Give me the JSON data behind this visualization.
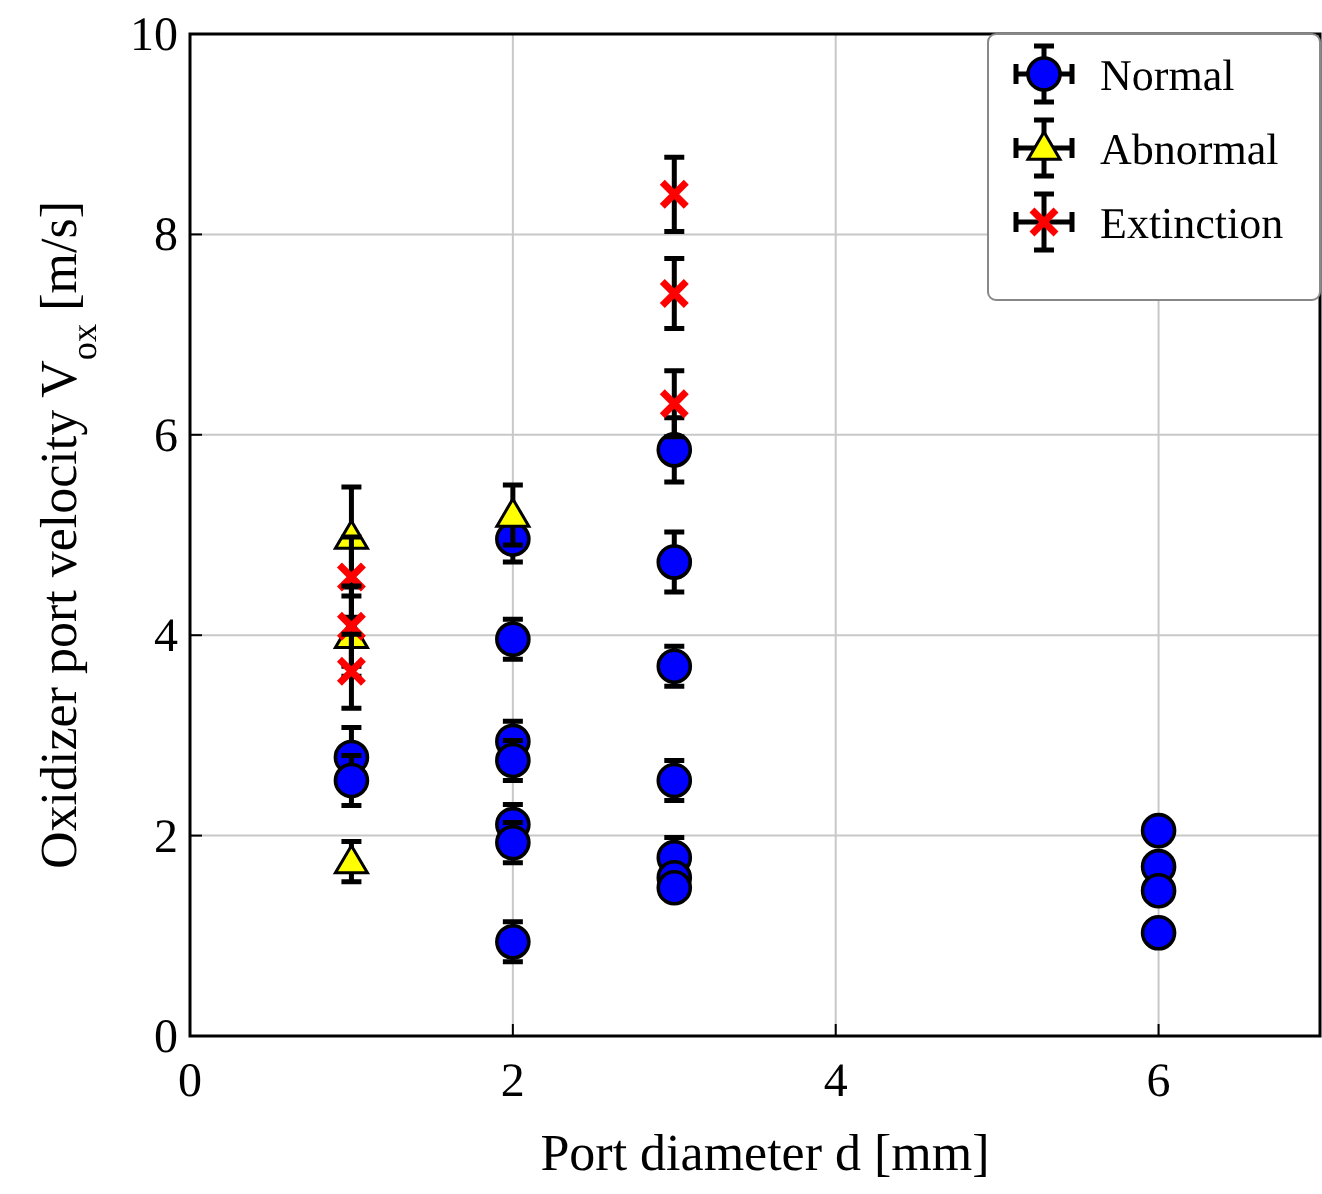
{
  "chart_data": {
    "type": "scatter",
    "xlabel": "Port diameter d [mm]",
    "ylabel": "Oxidizer port velocity V$_{ox}$ [m/s]",
    "xlim": [
      0,
      7
    ],
    "ylim": [
      0,
      10
    ],
    "xticks": [
      0,
      2,
      4,
      6
    ],
    "yticks": [
      0,
      2,
      4,
      6,
      8,
      10
    ],
    "grid": true,
    "legend": "top right",
    "series": [
      {
        "name": "Normal",
        "color": "#0000ff",
        "marker": "circle",
        "x": [
          1,
          1,
          2,
          2,
          2,
          2,
          2,
          2,
          2,
          3,
          3,
          3,
          3,
          3,
          3,
          3,
          6,
          6,
          6,
          6
        ],
        "values": [
          2.78,
          2.55,
          4.96,
          3.96,
          2.94,
          2.75,
          2.11,
          1.93,
          0.94,
          5.85,
          4.73,
          3.69,
          2.55,
          1.78,
          1.58,
          1.48,
          2.05,
          1.69,
          1.45,
          1.03
        ],
        "errors": [
          0.3,
          0.25,
          0.23,
          0.2,
          0.2,
          0.2,
          0.2,
          0.2,
          0.2,
          0.32,
          0.3,
          0.2,
          0.2,
          0.2,
          null,
          null,
          null,
          null,
          null,
          null
        ]
      },
      {
        "name": "Abnormal",
        "color": "#ffff00",
        "marker": "triangle",
        "x": [
          1,
          1,
          1,
          2
        ],
        "values": [
          4.98,
          3.99,
          1.74,
          5.2
        ],
        "errors": [
          0.5,
          0.4,
          0.2,
          0.3
        ]
      },
      {
        "name": "Extinction",
        "color": "#ff0000",
        "marker": "cross",
        "x": [
          1,
          1,
          1,
          3,
          3,
          3
        ],
        "values": [
          4.58,
          4.09,
          3.64,
          8.4,
          7.41,
          6.31
        ],
        "errors": [
          0.4,
          0.4,
          0.37,
          0.37,
          0.35,
          0.33
        ]
      }
    ]
  }
}
